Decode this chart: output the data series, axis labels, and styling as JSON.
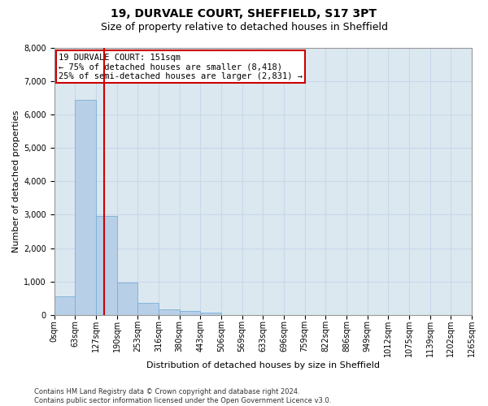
{
  "title": "19, DURVALE COURT, SHEFFIELD, S17 3PT",
  "subtitle": "Size of property relative to detached houses in Sheffield",
  "xlabel": "Distribution of detached houses by size in Sheffield",
  "ylabel": "Number of detached properties",
  "footer_line1": "Contains HM Land Registry data © Crown copyright and database right 2024.",
  "footer_line2": "Contains public sector information licensed under the Open Government Licence v3.0.",
  "bin_labels": [
    "0sqm",
    "63sqm",
    "127sqm",
    "190sqm",
    "253sqm",
    "316sqm",
    "380sqm",
    "443sqm",
    "506sqm",
    "569sqm",
    "633sqm",
    "696sqm",
    "759sqm",
    "822sqm",
    "886sqm",
    "949sqm",
    "1012sqm",
    "1075sqm",
    "1139sqm",
    "1202sqm",
    "1265sqm"
  ],
  "bar_heights": [
    550,
    6450,
    2950,
    975,
    350,
    175,
    125,
    75,
    0,
    0,
    0,
    0,
    0,
    0,
    0,
    0,
    0,
    0,
    0,
    0
  ],
  "bar_color": "#b8cfe8",
  "bar_edgecolor": "#7aaed6",
  "grid_color": "#c8d8ea",
  "background_color": "#dce8f0",
  "vline_color": "#cc0000",
  "annotation_text": "19 DURVALE COURT: 151sqm\n← 75% of detached houses are smaller (8,418)\n25% of semi-detached houses are larger (2,831) →",
  "annotation_box_color": "#cc0000",
  "annotation_fontsize": 7.5,
  "ylim": [
    0,
    8000
  ],
  "yticks": [
    0,
    1000,
    2000,
    3000,
    4000,
    5000,
    6000,
    7000,
    8000
  ],
  "title_fontsize": 10,
  "subtitle_fontsize": 9,
  "axis_fontsize": 8,
  "tick_fontsize": 7
}
